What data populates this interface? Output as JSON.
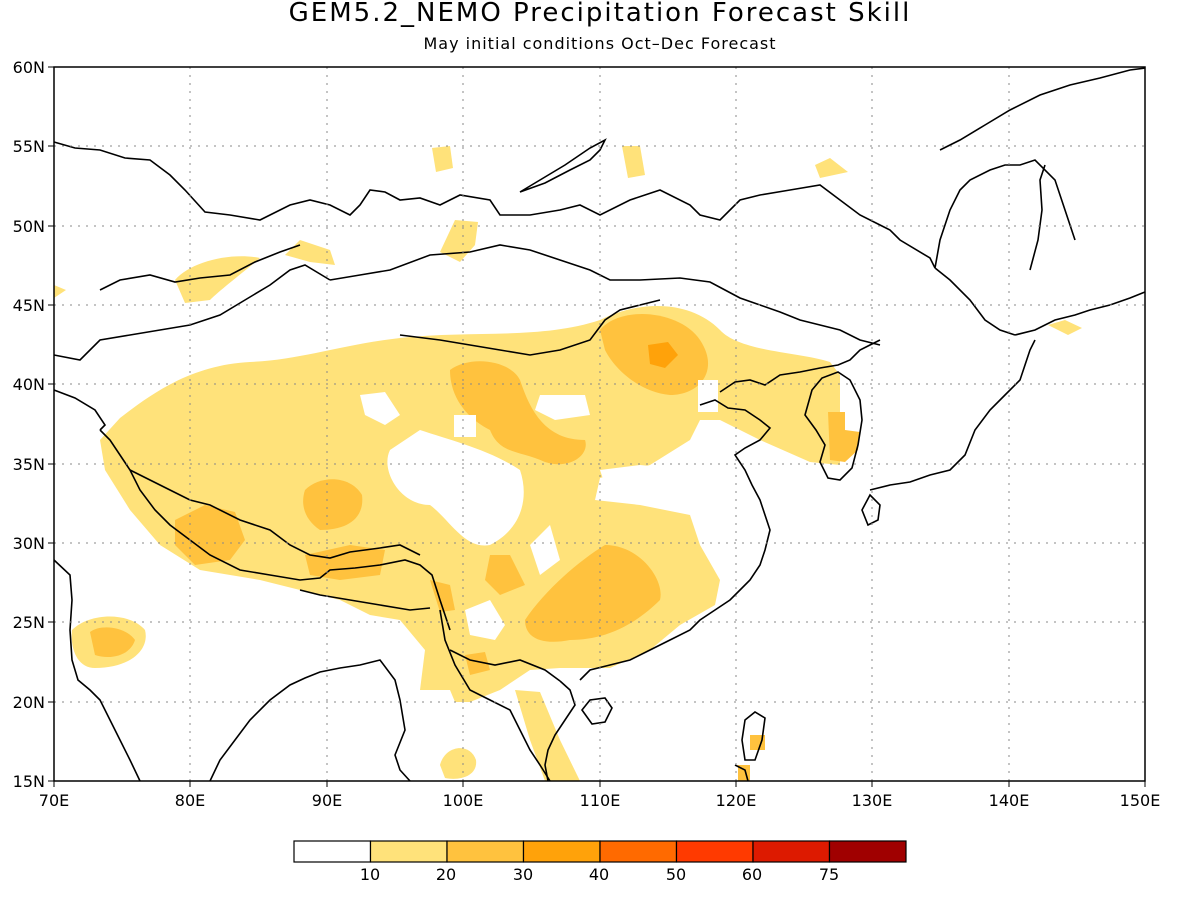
{
  "title": "GEM5.2_NEMO Precipitation Forecast Skill",
  "subtitle": "May initial conditions  Oct–Dec Forecast",
  "map": {
    "lon_labels": [
      "70E",
      "80E",
      "90E",
      "100E",
      "110E",
      "120E",
      "130E",
      "140E",
      "150E"
    ],
    "lat_labels": [
      "60N",
      "55N",
      "50N",
      "45N",
      "40N",
      "35N",
      "30N",
      "25N",
      "20N",
      "15N"
    ],
    "gridlines": "dotted"
  },
  "colorbar": {
    "labels": [
      "10",
      "20",
      "30",
      "40",
      "50",
      "60",
      "75"
    ],
    "colors": [
      "#ffffff",
      "#ffe27a",
      "#ffc23e",
      "#ffa20a",
      "#ff6a00",
      "#ff3a00",
      "#dd1a00",
      "#a00000"
    ]
  },
  "colors": {
    "level_10_20": "#ffe27a",
    "level_20_30": "#ffc23e",
    "level_30_40": "#ffa20a"
  }
}
